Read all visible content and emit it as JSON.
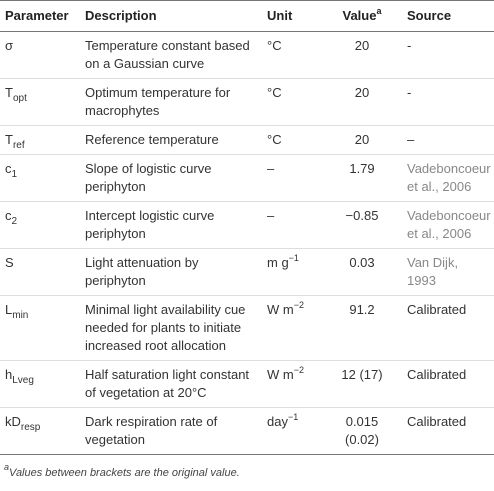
{
  "table": {
    "header": [
      {
        "text": "Parameter"
      },
      {
        "text": "Description"
      },
      {
        "text": "Unit"
      },
      {
        "text": "Value",
        "sup": "a"
      },
      {
        "text": "Source"
      }
    ],
    "rows": [
      {
        "parameter": {
          "text": "σ"
        },
        "description": "Temperature constant based on a Gaussian curve",
        "unit": {
          "text": "°C"
        },
        "value": "20",
        "source": "-"
      },
      {
        "parameter": {
          "text": "T",
          "sub": "opt"
        },
        "description": "Optimum temperature for macrophytes",
        "unit": {
          "text": "°C"
        },
        "value": "20",
        "source": "-"
      },
      {
        "parameter": {
          "text": "T",
          "sub": "ref"
        },
        "description": "Reference temperature",
        "unit": {
          "text": "°C"
        },
        "value": "20",
        "source": "–"
      },
      {
        "parameter": {
          "text": "c",
          "sub": "1"
        },
        "description": "Slope of logistic curve periphyton",
        "unit": {
          "text": "–"
        },
        "value": "1.79",
        "source": "Vadeboncoeur et al., 2006"
      },
      {
        "parameter": {
          "text": "c",
          "sub": "2"
        },
        "description": "Intercept logistic curve periphyton",
        "unit": {
          "text": "–"
        },
        "value": "−0.85",
        "source": "Vadeboncoeur et al., 2006"
      },
      {
        "parameter": {
          "text": "S"
        },
        "description": "Light attenuation by periphyton",
        "unit": {
          "text": "m g",
          "sup": "−1"
        },
        "value": "0.03",
        "source": "Van Dijk, 1993"
      },
      {
        "parameter": {
          "text": "L",
          "sub": "min"
        },
        "description": "Minimal light availability cue needed for plants to initiate increased root allocation",
        "unit": {
          "text": "W m",
          "sup": "−2"
        },
        "value": "91.2",
        "source": "Calibrated"
      },
      {
        "parameter": {
          "text": "h",
          "sub": "Lveg"
        },
        "description": "Half saturation light constant of vegetation at 20°C",
        "unit": {
          "text": "W m",
          "sup": "−2"
        },
        "value": "12 (17)",
        "source": "Calibrated"
      },
      {
        "parameter": {
          "text": "kD",
          "sub": "resp"
        },
        "description": "Dark respiration rate of vegetation",
        "unit": {
          "text": "day",
          "sup": "−1"
        },
        "value": "0.015 (0.02)",
        "source": "Calibrated"
      }
    ],
    "footnote": {
      "marker": "a",
      "text": "Values between brackets are the original value."
    }
  }
}
